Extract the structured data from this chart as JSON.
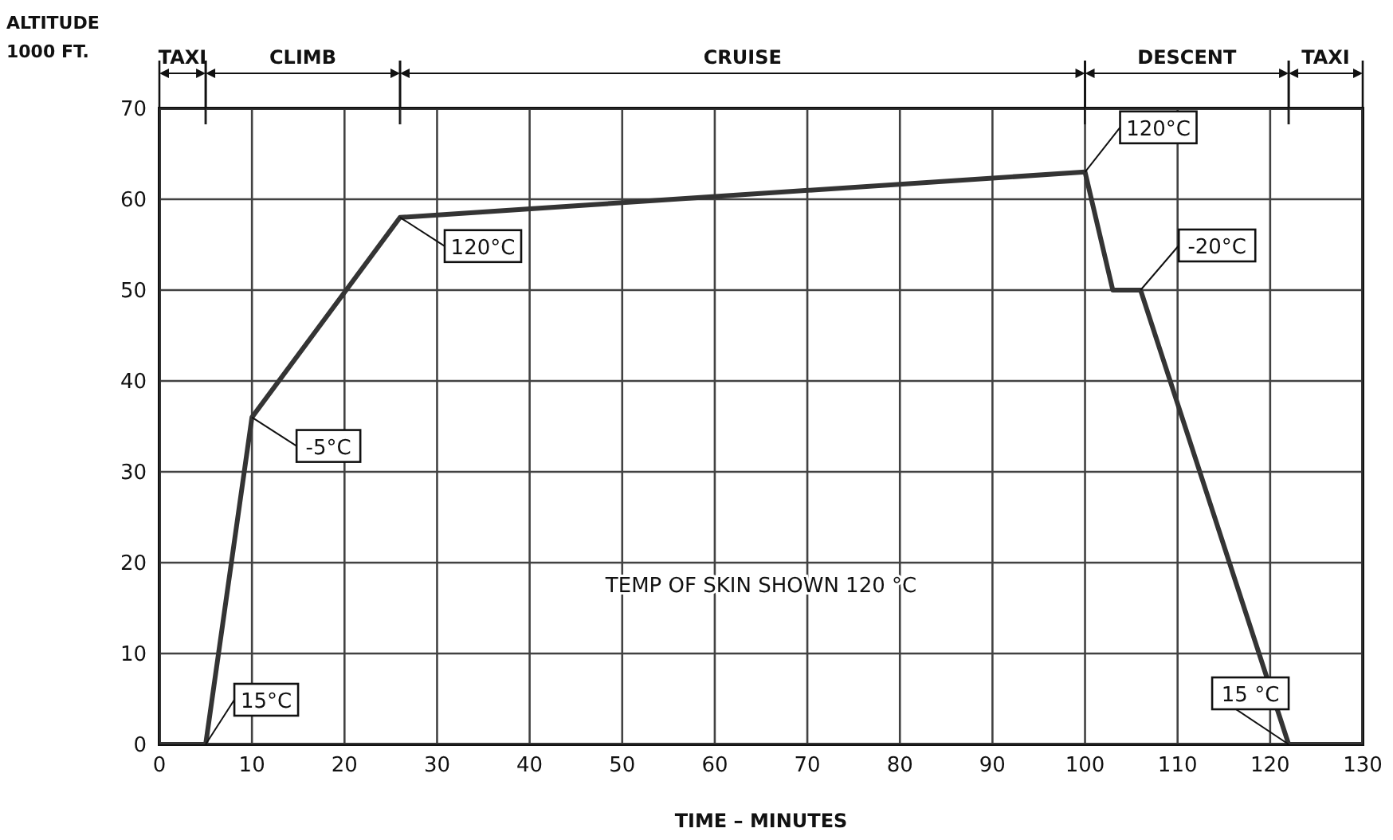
{
  "chart_data": {
    "type": "line",
    "ylabel": "ALTITUDE 1000 FT.",
    "xlabel": "TIME – MINUTES",
    "x": [
      0,
      5,
      10,
      26,
      100,
      103,
      106,
      122,
      130
    ],
    "series": [
      {
        "color": "#111111",
        "values": [
          0,
          0,
          36,
          58,
          63,
          50,
          50,
          0,
          0
        ]
      }
    ],
    "xlim": [
      0,
      130
    ],
    "xticks": [
      0,
      10,
      20,
      30,
      40,
      50,
      60,
      70,
      80,
      90,
      100,
      110,
      120,
      130
    ],
    "ylim": [
      0,
      70
    ],
    "yticks": [
      0,
      10,
      20,
      30,
      40,
      50,
      60,
      70
    ],
    "grid": true,
    "marker": "none",
    "line_style": "solid",
    "bands": [
      {
        "axis": "x",
        "from": 0,
        "to": 5,
        "label": "TAXI",
        "color": "#ffffff"
      },
      {
        "axis": "x",
        "from": 5,
        "to": 26,
        "label": "CLIMB",
        "color": "#ffffff"
      },
      {
        "axis": "x",
        "from": 26,
        "to": 100,
        "label": "CRUISE",
        "color": "#ffffff"
      },
      {
        "axis": "x",
        "from": 100,
        "to": 122,
        "label": "DESCENT",
        "color": "#ffffff"
      },
      {
        "axis": "x",
        "from": 122,
        "to": 130,
        "label": "TAXI",
        "color": "#ffffff"
      }
    ],
    "annotations": [
      {
        "text": "15°C",
        "x": 5,
        "y": 0
      },
      {
        "text": "-5°C",
        "x": 10,
        "y": 36
      },
      {
        "text": "120°C",
        "x": 26,
        "y": 58
      },
      {
        "text": "120°C",
        "x": 100,
        "y": 63
      },
      {
        "text": "-20°C",
        "x": 106,
        "y": 50
      },
      {
        "text": "15 °C",
        "x": 122,
        "y": 0
      },
      "TEMP OF SKIN SHOWN 120 °C"
    ]
  }
}
